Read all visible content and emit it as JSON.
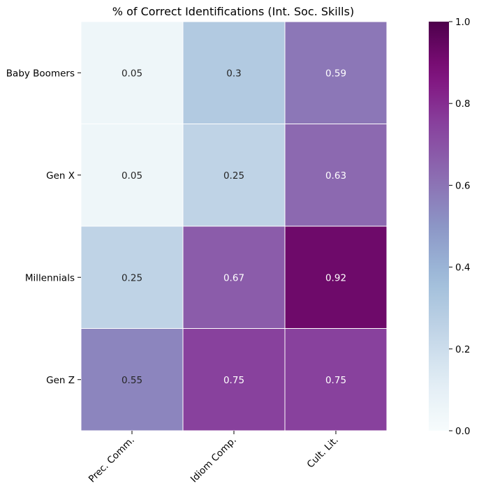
{
  "chart_data": {
    "type": "heatmap",
    "title": "% of Correct Identifications (Int. Soc. Skills)",
    "xlabel": "",
    "ylabel": "",
    "columns": [
      "Prec. Comm.",
      "Idiom Comp.",
      "Cult. Lit."
    ],
    "rows": [
      "Baby Boomers",
      "Gen X",
      "Millennials",
      "Gen Z"
    ],
    "values": [
      [
        0.05,
        0.3,
        0.59
      ],
      [
        0.05,
        0.25,
        0.63
      ],
      [
        0.25,
        0.67,
        0.92
      ],
      [
        0.55,
        0.75,
        0.75
      ]
    ],
    "cell_labels": [
      [
        "0.05",
        "0.3",
        "0.59"
      ],
      [
        "0.05",
        "0.25",
        "0.63"
      ],
      [
        "0.25",
        "0.67",
        "0.92"
      ],
      [
        "0.55",
        "0.75",
        "0.75"
      ]
    ],
    "colormap": "BuPu",
    "vmin": 0.0,
    "vmax": 1.0,
    "colorbar_ticks": [
      "0.0",
      "0.2",
      "0.4",
      "0.6",
      "0.8",
      "1.0"
    ],
    "grid": true,
    "legend": "colorbar-right"
  }
}
